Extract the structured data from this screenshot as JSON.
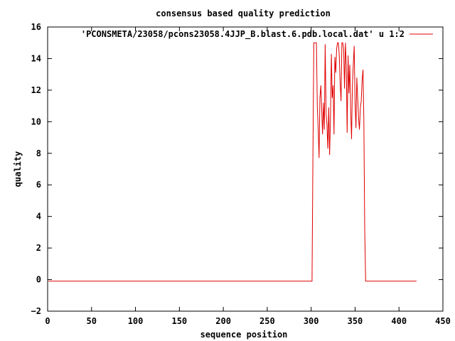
{
  "chart_data": {
    "type": "line",
    "title": "consensus based quality prediction",
    "xlabel": "sequence position",
    "ylabel": "quality",
    "xlim": [
      0,
      450
    ],
    "ylim": [
      -2,
      16
    ],
    "xticks": [
      0,
      50,
      100,
      150,
      200,
      250,
      300,
      350,
      400,
      450
    ],
    "yticks": [
      -2,
      0,
      2,
      4,
      6,
      8,
      10,
      12,
      14,
      16
    ],
    "grid": false,
    "legend_position": "top-right",
    "series": [
      {
        "name": "'PCONSMETA/23058/pcons23058.4JJP_B.blast.6.pdb.local.dat' u 1:2",
        "color": "#e00000",
        "x": [
          1,
          301,
          302,
          303,
          304,
          305,
          306,
          307,
          308,
          309,
          310,
          311,
          312,
          313,
          314,
          315,
          316,
          317,
          318,
          319,
          320,
          321,
          322,
          323,
          324,
          325,
          326,
          327,
          328,
          329,
          330,
          331,
          332,
          333,
          334,
          335,
          336,
          337,
          338,
          339,
          340,
          341,
          342,
          343,
          344,
          345,
          346,
          347,
          348,
          349,
          350,
          351,
          352,
          353,
          354,
          355,
          356,
          357,
          358,
          359,
          360,
          361,
          362,
          363,
          364,
          365,
          366,
          367,
          368,
          420
        ],
        "y": [
          -0.1,
          -0.1,
          7.5,
          15,
          15,
          15,
          15,
          11,
          9.5,
          7.7,
          11.5,
          12.3,
          10.8,
          9.2,
          11.2,
          9.5,
          14.9,
          10.5,
          9.8,
          8.3,
          10.9,
          7.9,
          10.1,
          14.3,
          11.5,
          12.3,
          9.2,
          14.1,
          13.1,
          14.6,
          15,
          15,
          14.2,
          12.5,
          11.3,
          15,
          15,
          14.6,
          12.1,
          15,
          13.5,
          9.3,
          14.2,
          11.8,
          13.6,
          10.7,
          8.9,
          12.4,
          13.7,
          14.8,
          11.2,
          9.6,
          12.8,
          11.4,
          10.2,
          9.5,
          10.9,
          11.3,
          12.6,
          13.3,
          10.1,
          3.2,
          -0.1,
          -0.1,
          -0.1,
          -0.1,
          -0.1,
          -0.1,
          -0.1,
          -0.1
        ]
      }
    ]
  }
}
